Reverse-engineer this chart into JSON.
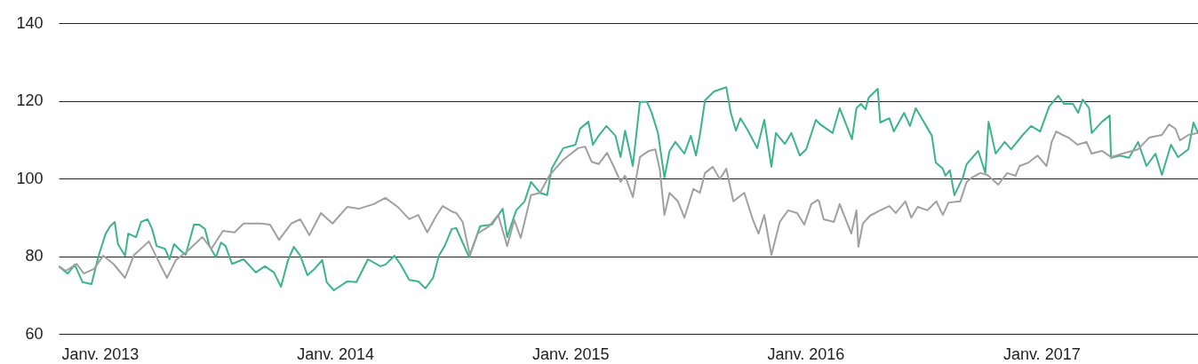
{
  "chart_data": {
    "type": "line",
    "xlim": [
      "2012-10-29",
      "2017-09-01"
    ],
    "ylim": [
      60,
      140
    ],
    "xticks": [
      {
        "value": "2013-01-01",
        "label": "Janv. 2013"
      },
      {
        "value": "2014-01-01",
        "label": "Janv. 2014"
      },
      {
        "value": "2015-01-01",
        "label": "Janv. 2015"
      },
      {
        "value": "2016-01-01",
        "label": "Janv. 2016"
      },
      {
        "value": "2017-01-01",
        "label": "Janv. 2017"
      }
    ],
    "yticks": [
      60,
      80,
      100,
      120,
      140
    ],
    "grid": "y",
    "series": [
      {
        "color": "#3cb48a",
        "x": [
          "2012-10-29",
          "2012-11-12",
          "2012-11-23",
          "2012-12-05",
          "2012-12-19",
          "2012-12-30",
          "2013-01-10",
          "2013-01-17",
          "2013-01-24",
          "2013-01-29",
          "2013-02-09",
          "2013-02-14",
          "2013-02-26",
          "2013-03-06",
          "2013-03-16",
          "2013-03-23",
          "2013-03-30",
          "2013-04-12",
          "2013-04-19",
          "2013-04-26",
          "2013-05-07",
          "2013-05-14",
          "2013-05-27",
          "2013-06-04",
          "2013-06-13",
          "2013-06-20",
          "2013-06-30",
          "2013-07-08",
          "2013-07-15",
          "2013-07-25",
          "2013-08-12",
          "2013-08-31",
          "2013-09-14",
          "2013-09-28",
          "2013-10-09",
          "2013-10-20",
          "2013-10-29",
          "2013-11-08",
          "2013-11-19",
          "2013-11-30",
          "2013-12-12",
          "2013-12-19",
          "2013-12-30",
          "2014-01-20",
          "2014-02-03",
          "2014-02-21",
          "2014-03-12",
          "2014-03-20",
          "2014-04-03",
          "2014-04-12",
          "2014-04-26",
          "2014-05-10",
          "2014-05-21",
          "2014-06-02",
          "2014-06-11",
          "2014-06-20",
          "2014-07-01",
          "2014-07-08",
          "2014-07-28",
          "2014-08-14",
          "2014-09-01",
          "2014-09-18",
          "2014-09-25",
          "2014-10-09",
          "2014-10-22",
          "2014-11-01",
          "2014-11-15",
          "2014-11-26",
          "2014-12-03",
          "2014-12-21",
          "2015-01-09",
          "2015-01-16",
          "2015-01-29",
          "2015-02-05",
          "2015-02-14",
          "2015-02-26",
          "2015-03-12",
          "2015-03-20",
          "2015-03-27",
          "2015-04-08",
          "2015-04-19",
          "2015-04-30",
          "2015-05-07",
          "2015-05-17",
          "2015-05-27",
          "2015-06-04",
          "2015-06-13",
          "2015-06-27",
          "2015-07-07",
          "2015-07-15",
          "2015-07-21",
          "2015-07-29",
          "2015-08-12",
          "2015-08-31",
          "2015-09-07",
          "2015-09-15",
          "2015-09-22",
          "2015-10-02",
          "2015-10-18",
          "2015-10-29",
          "2015-11-09",
          "2015-11-16",
          "2015-11-30",
          "2015-12-10",
          "2015-12-23",
          "2016-01-02",
          "2016-01-17",
          "2016-01-24",
          "2016-02-12",
          "2016-02-23",
          "2016-03-13",
          "2016-03-20",
          "2016-03-27",
          "2016-04-03",
          "2016-04-08",
          "2016-04-22",
          "2016-04-26",
          "2016-05-10",
          "2016-05-17",
          "2016-06-02",
          "2016-06-11",
          "2016-06-20",
          "2016-07-15",
          "2016-07-21",
          "2016-08-01",
          "2016-08-05",
          "2016-08-12",
          "2016-08-19",
          "2016-09-01",
          "2016-09-07",
          "2016-09-25",
          "2016-10-06",
          "2016-10-11",
          "2016-10-22",
          "2016-11-05",
          "2016-11-15",
          "2016-12-03",
          "2016-12-16",
          "2016-12-30",
          "2017-01-13",
          "2017-01-27",
          "2017-02-05",
          "2017-02-19",
          "2017-02-27",
          "2017-03-06",
          "2017-03-16",
          "2017-03-20",
          "2017-04-05",
          "2017-04-17",
          "2017-04-19",
          "2017-05-03",
          "2017-05-17",
          "2017-05-31",
          "2017-06-13",
          "2017-06-27",
          "2017-07-07",
          "2017-07-14",
          "2017-07-21",
          "2017-08-01",
          "2017-08-17",
          "2017-08-25",
          "2017-09-01"
        ],
        "values": [
          77.4,
          75.5,
          77.8,
          73.3,
          72.8,
          80.1,
          85.8,
          87.7,
          88.8,
          83.1,
          80.1,
          85.8,
          84.9,
          88.8,
          89.5,
          87,
          82.6,
          81.9,
          79.2,
          83.1,
          81.3,
          80.3,
          88.1,
          88.1,
          87,
          82.6,
          79.7,
          83.5,
          82.6,
          78,
          79.2,
          75.8,
          77.4,
          75.8,
          72.1,
          79,
          82.4,
          80.1,
          75.1,
          76.7,
          79,
          73.3,
          71.2,
          73.5,
          73.3,
          79.2,
          77.4,
          77.8,
          80.1,
          78,
          73.9,
          73.5,
          71.7,
          74.4,
          80.1,
          82.6,
          87,
          87.2,
          79.7,
          87.7,
          88.1,
          92.2,
          84.9,
          91.8,
          94.1,
          99.1,
          96.3,
          95.7,
          102.5,
          107.8,
          108.7,
          112.8,
          114.6,
          108.7,
          111,
          113.5,
          111,
          105.5,
          112.3,
          103.2,
          119.7,
          119.7,
          117,
          111.7,
          100.2,
          107.1,
          109.4,
          106.4,
          111,
          105.9,
          111.2,
          120.1,
          122.4,
          123.5,
          116.9,
          112.3,
          115.5,
          112.8,
          107.8,
          115.1,
          103,
          111.7,
          108.9,
          111.7,
          105.9,
          107.5,
          115.1,
          113.9,
          111.7,
          118.1,
          110.1,
          118.1,
          119.2,
          117.8,
          120.8,
          123.1,
          114.4,
          115.5,
          112.1,
          116.9,
          113.5,
          118.1,
          111,
          104.1,
          102.5,
          100.7,
          102.1,
          95.7,
          100.2,
          103.7,
          107.1,
          101.4,
          114.6,
          106.4,
          109.4,
          107.5,
          111.2,
          113.5,
          112.1,
          118.5,
          121.3,
          119.2,
          119.2,
          116.9,
          120.3,
          118.1,
          111.7,
          114.6,
          116.2,
          105.3,
          105.9,
          105.3,
          109.4,
          103.2,
          106.4,
          100.9,
          104.8,
          108.7,
          105.5,
          107.5,
          114.4,
          111.7
        ]
      },
      {
        "color": "#a0a0a0",
        "x": [
          "2012-10-29",
          "2012-11-09",
          "2012-11-26",
          "2012-12-07",
          "2012-12-23",
          "2013-01-06",
          "2013-01-22",
          "2013-02-09",
          "2013-02-23",
          "2013-03-18",
          "2013-03-30",
          "2013-04-15",
          "2013-04-29",
          "2013-05-17",
          "2013-06-09",
          "2013-06-23",
          "2013-07-11",
          "2013-07-29",
          "2013-08-12",
          "2013-09-08",
          "2013-09-22",
          "2013-10-06",
          "2013-10-25",
          "2013-11-08",
          "2013-11-22",
          "2013-12-10",
          "2013-12-28",
          "2014-01-20",
          "2014-02-07",
          "2014-03-02",
          "2014-03-20",
          "2014-04-08",
          "2014-04-26",
          "2014-05-10",
          "2014-05-24",
          "2014-06-07",
          "2014-06-17",
          "2014-07-01",
          "2014-07-08",
          "2014-07-18",
          "2014-07-29",
          "2014-08-10",
          "2014-08-28",
          "2014-09-11",
          "2014-09-25",
          "2014-10-06",
          "2014-10-16",
          "2014-11-01",
          "2014-11-15",
          "2014-11-30",
          "2014-12-21",
          "2015-01-13",
          "2015-01-24",
          "2015-02-03",
          "2015-02-14",
          "2015-02-27",
          "2015-03-09",
          "2015-03-20",
          "2015-03-27",
          "2015-04-08",
          "2015-04-19",
          "2015-05-03",
          "2015-05-13",
          "2015-05-20",
          "2015-05-27",
          "2015-06-04",
          "2015-06-17",
          "2015-06-27",
          "2015-07-11",
          "2015-07-21",
          "2015-07-29",
          "2015-08-10",
          "2015-08-21",
          "2015-08-31",
          "2015-09-11",
          "2015-09-28",
          "2015-10-11",
          "2015-10-20",
          "2015-10-29",
          "2015-11-09",
          "2015-11-22",
          "2015-12-05",
          "2015-12-19",
          "2015-12-30",
          "2016-01-10",
          "2016-01-20",
          "2016-01-22",
          "2016-01-29",
          "2016-02-14",
          "2016-02-23",
          "2016-03-12",
          "2016-03-20",
          "2016-03-23",
          "2016-03-30",
          "2016-04-10",
          "2016-04-26",
          "2016-05-10",
          "2016-05-20",
          "2016-06-04",
          "2016-06-13",
          "2016-06-23",
          "2016-07-08",
          "2016-07-22",
          "2016-08-01",
          "2016-08-10",
          "2016-08-28",
          "2016-09-07",
          "2016-09-15",
          "2016-09-28",
          "2016-10-09",
          "2016-10-26",
          "2016-11-09",
          "2016-11-22",
          "2016-11-28",
          "2016-12-12",
          "2016-12-26",
          "2017-01-09",
          "2017-01-17",
          "2017-01-24",
          "2017-02-03",
          "2017-02-12",
          "2017-02-26",
          "2017-03-12",
          "2017-03-20",
          "2017-04-05",
          "2017-04-19",
          "2017-05-07",
          "2017-05-31",
          "2017-06-17",
          "2017-07-07",
          "2017-07-18",
          "2017-07-28",
          "2017-08-04",
          "2017-08-17",
          "2017-09-01"
        ],
        "values": [
          77.4,
          76.2,
          78,
          75.5,
          76.7,
          80.1,
          78,
          74.4,
          80.3,
          83.8,
          79.7,
          74.4,
          79,
          81.3,
          84.9,
          81.9,
          86.5,
          86.1,
          88.4,
          88.4,
          88.1,
          84.2,
          88.4,
          89.5,
          85.4,
          91.1,
          88.4,
          92.7,
          92.2,
          93.4,
          95,
          92.7,
          89.5,
          90.6,
          86.1,
          90.4,
          92.9,
          91.5,
          91.1,
          88.8,
          80.3,
          85.8,
          87.7,
          90.6,
          82.6,
          89.3,
          84.7,
          95.7,
          96.3,
          100.9,
          104.8,
          107.8,
          108.2,
          104.3,
          103.7,
          106.6,
          103.2,
          99.1,
          100.7,
          95.2,
          105.5,
          107.1,
          107.5,
          102.1,
          90.6,
          96.3,
          94.1,
          89.9,
          97.3,
          96.3,
          101.4,
          103,
          99.8,
          102.5,
          94.1,
          96.3,
          89.5,
          85.8,
          90.6,
          80.3,
          88.8,
          91.8,
          91.1,
          88.1,
          93.4,
          94.5,
          94.1,
          89.5,
          88.8,
          93.4,
          85.8,
          91.8,
          82.4,
          88.4,
          90.4,
          91.8,
          92.9,
          91.1,
          94.1,
          89.9,
          92.7,
          91.8,
          94.1,
          90.6,
          93.8,
          94.1,
          99.1,
          100.2,
          101.4,
          100.9,
          98.4,
          101.4,
          100.7,
          103.2,
          104.1,
          105.9,
          103.2,
          109.4,
          112.1,
          111.2,
          110.5,
          108.7,
          109.4,
          106.4,
          107.1,
          105.5,
          106.4,
          107.5,
          110.5,
          111.2,
          113.9,
          112.8,
          109.8,
          111.2,
          111.7
        ]
      }
    ]
  }
}
